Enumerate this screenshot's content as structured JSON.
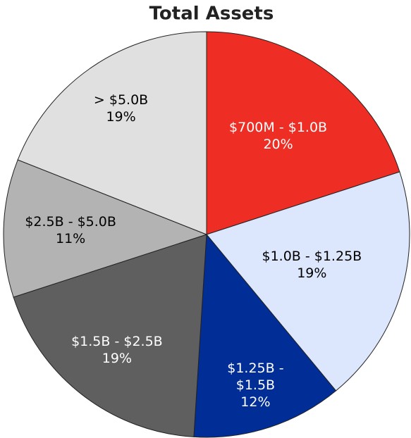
{
  "chart_data": {
    "type": "pie",
    "title": "Total Assets",
    "categories": [
      "$700M - $1.0B",
      "$1.0B - $1.25B",
      "$1.25B - $1.5B",
      "$1.5B - $2.5B",
      "$2.5B - $5.0B",
      "> $5.0B"
    ],
    "values": [
      20,
      19,
      12,
      19,
      11,
      19
    ],
    "value_labels": [
      "20%",
      "19%",
      "12%",
      "19%",
      "11%",
      "19%"
    ],
    "colors": [
      "#ee2e24",
      "#dce6fc",
      "#002d96",
      "#5f5f5f",
      "#b3b3b3",
      "#e0e0e0"
    ]
  }
}
